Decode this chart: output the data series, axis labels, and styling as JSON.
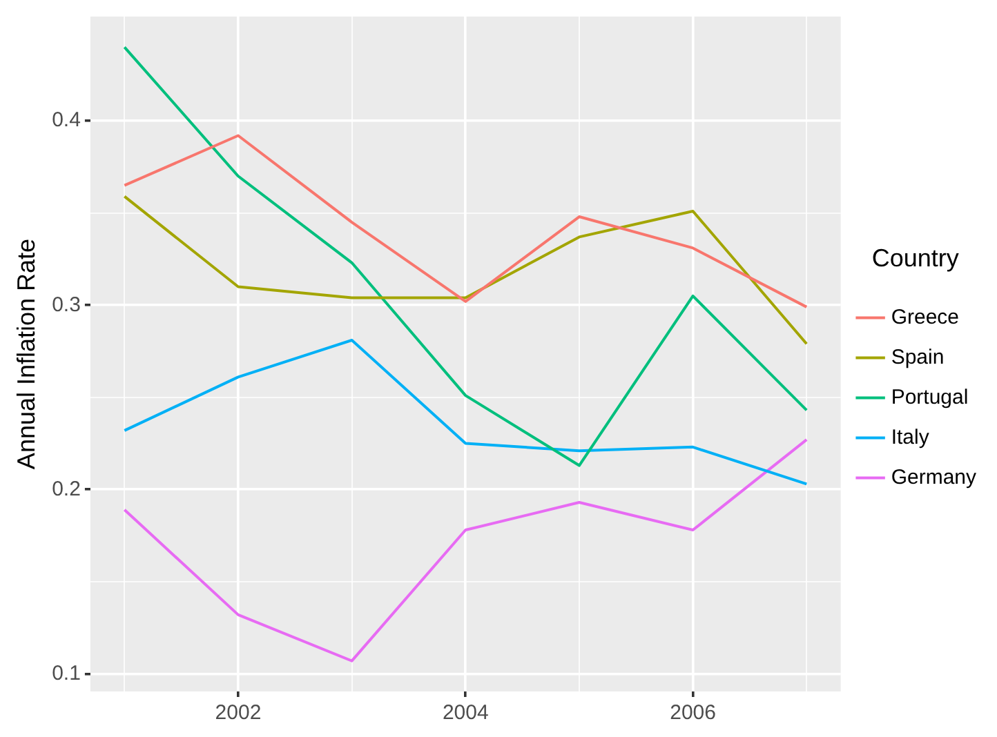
{
  "chart_data": {
    "type": "line",
    "ylabel": "Annual Inflation Rate",
    "legend_title": "Country",
    "legend": "right",
    "grid": true,
    "marker": "none",
    "line_style": "solid",
    "x": [
      2001,
      2002,
      2003,
      2004,
      2005,
      2006,
      2007
    ],
    "xlim": [
      2000.7,
      2007.3
    ],
    "xticks": [
      {
        "value": 2001,
        "label": null
      },
      2002,
      {
        "value": 2003,
        "label": null
      },
      2004,
      {
        "value": 2005,
        "label": null
      },
      2006,
      {
        "value": 2007,
        "label": null
      }
    ],
    "ylim": [
      0.0904,
      0.4566
    ],
    "yticks": [
      0.1,
      {
        "value": 0.15,
        "label": null
      },
      0.2,
      {
        "value": 0.25,
        "label": null
      },
      0.3,
      {
        "value": 0.35,
        "label": null
      },
      0.4
    ],
    "series": [
      {
        "name": "Greece",
        "color": "#f8766d",
        "values": [
          0.365,
          0.392,
          0.345,
          0.302,
          0.348,
          0.331,
          0.299
        ]
      },
      {
        "name": "Spain",
        "color": "#a3a500",
        "values": [
          0.359,
          0.31,
          0.304,
          0.304,
          0.337,
          0.351,
          0.279
        ]
      },
      {
        "name": "Portugal",
        "color": "#00bf7d",
        "values": [
          0.44,
          0.37,
          0.323,
          0.251,
          0.213,
          0.305,
          0.243
        ]
      },
      {
        "name": "Italy",
        "color": "#00b0f6",
        "values": [
          0.232,
          0.261,
          0.281,
          0.225,
          0.221,
          0.223,
          0.203
        ]
      },
      {
        "name": "Germany",
        "color": "#e76bf3",
        "values": [
          0.189,
          0.132,
          0.107,
          0.178,
          0.193,
          0.178,
          0.227
        ]
      }
    ]
  }
}
